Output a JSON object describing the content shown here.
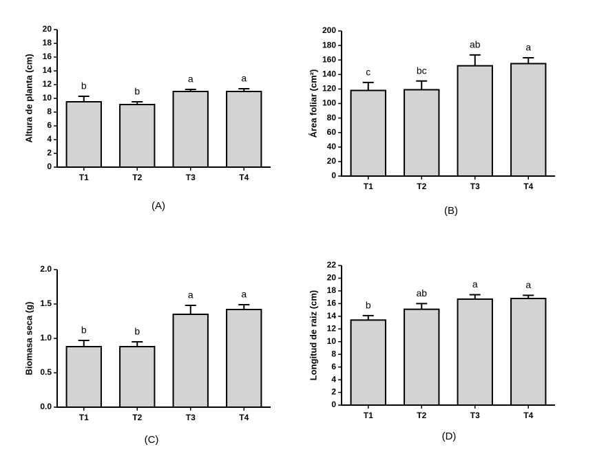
{
  "chart_data": [
    {
      "type": "bar",
      "caption": "(A)",
      "ylabel": "Altura de planta (cm)",
      "categories": [
        "T1",
        "T2",
        "T3",
        "T4"
      ],
      "values": [
        9.5,
        9.1,
        11.0,
        11.0
      ],
      "errors": [
        0.8,
        0.4,
        0.3,
        0.4
      ],
      "letters": [
        "b",
        "b",
        "a",
        "a"
      ],
      "color": "#d3d3d3",
      "ylim": [
        0,
        20
      ],
      "yticks": [
        0,
        2,
        4,
        6,
        8,
        10,
        12,
        14,
        16,
        18,
        20
      ]
    },
    {
      "type": "bar",
      "caption": "(B)",
      "ylabel": "Área foliar (cm²)",
      "categories": [
        "T1",
        "T2",
        "T3",
        "T4"
      ],
      "values": [
        118,
        119,
        152,
        155
      ],
      "errors": [
        11,
        12,
        15,
        8
      ],
      "letters": [
        "c",
        "bc",
        "ab",
        "a"
      ],
      "color": "#d3d3d3",
      "ylim": [
        0,
        200
      ],
      "yticks": [
        0,
        20,
        40,
        60,
        80,
        100,
        120,
        140,
        160,
        180,
        200
      ]
    },
    {
      "type": "bar",
      "caption": "(C)",
      "ylabel": "Biomasa seca (g)",
      "categories": [
        "T1",
        "T2",
        "T3",
        "T4"
      ],
      "values": [
        0.88,
        0.88,
        1.35,
        1.42
      ],
      "errors": [
        0.09,
        0.07,
        0.13,
        0.07
      ],
      "letters": [
        "b",
        "b",
        "a",
        "a"
      ],
      "color": "#d3d3d3",
      "ylim": [
        0,
        2
      ],
      "yticks": [
        {
          "value": 0,
          "label": "0.0"
        },
        0.5,
        {
          "value": 1,
          "label": "1.0"
        },
        1.5,
        {
          "value": 2,
          "label": "2.0"
        }
      ]
    },
    {
      "type": "bar",
      "caption": "(D)",
      "ylabel": "Longitud de raiz (cm)",
      "categories": [
        "T1",
        "T2",
        "T3",
        "T4"
      ],
      "values": [
        13.4,
        15.1,
        16.7,
        16.8
      ],
      "errors": [
        0.7,
        0.9,
        0.7,
        0.5
      ],
      "letters": [
        "b",
        "ab",
        "a",
        "a"
      ],
      "color": "#d3d3d3",
      "ylim": [
        0,
        22
      ],
      "yticks": [
        0,
        2,
        4,
        6,
        8,
        10,
        12,
        14,
        16,
        18,
        20,
        22
      ]
    }
  ]
}
